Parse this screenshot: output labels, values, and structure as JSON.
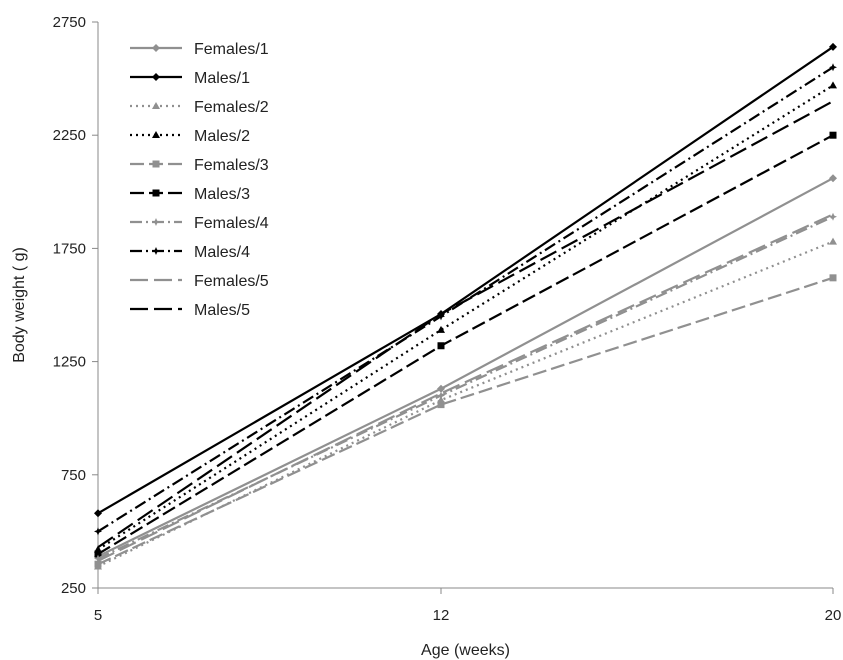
{
  "chart_data": {
    "type": "line",
    "title": "",
    "xlabel": "Age (weeks)",
    "ylabel": "Body weight ( g)",
    "x": [
      5,
      12,
      20
    ],
    "ylim": [
      250,
      2750
    ],
    "yticks": [
      250,
      750,
      1250,
      1750,
      2250,
      2750
    ],
    "xticks": [
      "5",
      "12",
      "20"
    ],
    "grid": false,
    "legend": "top-left",
    "series": [
      {
        "name": "Females/1",
        "values": [
          390,
          1130,
          2060
        ],
        "color": "#909090",
        "dash": "solid",
        "marker": "diamond"
      },
      {
        "name": "Males/1",
        "values": [
          580,
          1460,
          2640
        ],
        "color": "#000000",
        "dash": "solid",
        "marker": "diamond"
      },
      {
        "name": "Females/2",
        "values": [
          345,
          1080,
          1780
        ],
        "color": "#909090",
        "dash": "dotted",
        "marker": "triangle"
      },
      {
        "name": "Males/2",
        "values": [
          420,
          1390,
          2470
        ],
        "color": "#000000",
        "dash": "dotted",
        "marker": "triangle"
      },
      {
        "name": "Females/3",
        "values": [
          355,
          1060,
          1620
        ],
        "color": "#909090",
        "dash": "longdash",
        "marker": "square"
      },
      {
        "name": "Males/3",
        "values": [
          400,
          1320,
          2250
        ],
        "color": "#000000",
        "dash": "longdash",
        "marker": "square"
      },
      {
        "name": "Females/4",
        "values": [
          380,
          1100,
          1890
        ],
        "color": "#909090",
        "dash": "dashdot",
        "marker": "star"
      },
      {
        "name": "Males/4",
        "values": [
          500,
          1450,
          2550
        ],
        "color": "#000000",
        "dash": "dashdot",
        "marker": "star"
      },
      {
        "name": "Females/5",
        "values": [
          370,
          1110,
          1900
        ],
        "color": "#909090",
        "dash": "dash",
        "marker": "none"
      },
      {
        "name": "Males/5",
        "values": [
          430,
          1460,
          2400
        ],
        "color": "#000000",
        "dash": "dash",
        "marker": "none"
      }
    ]
  }
}
